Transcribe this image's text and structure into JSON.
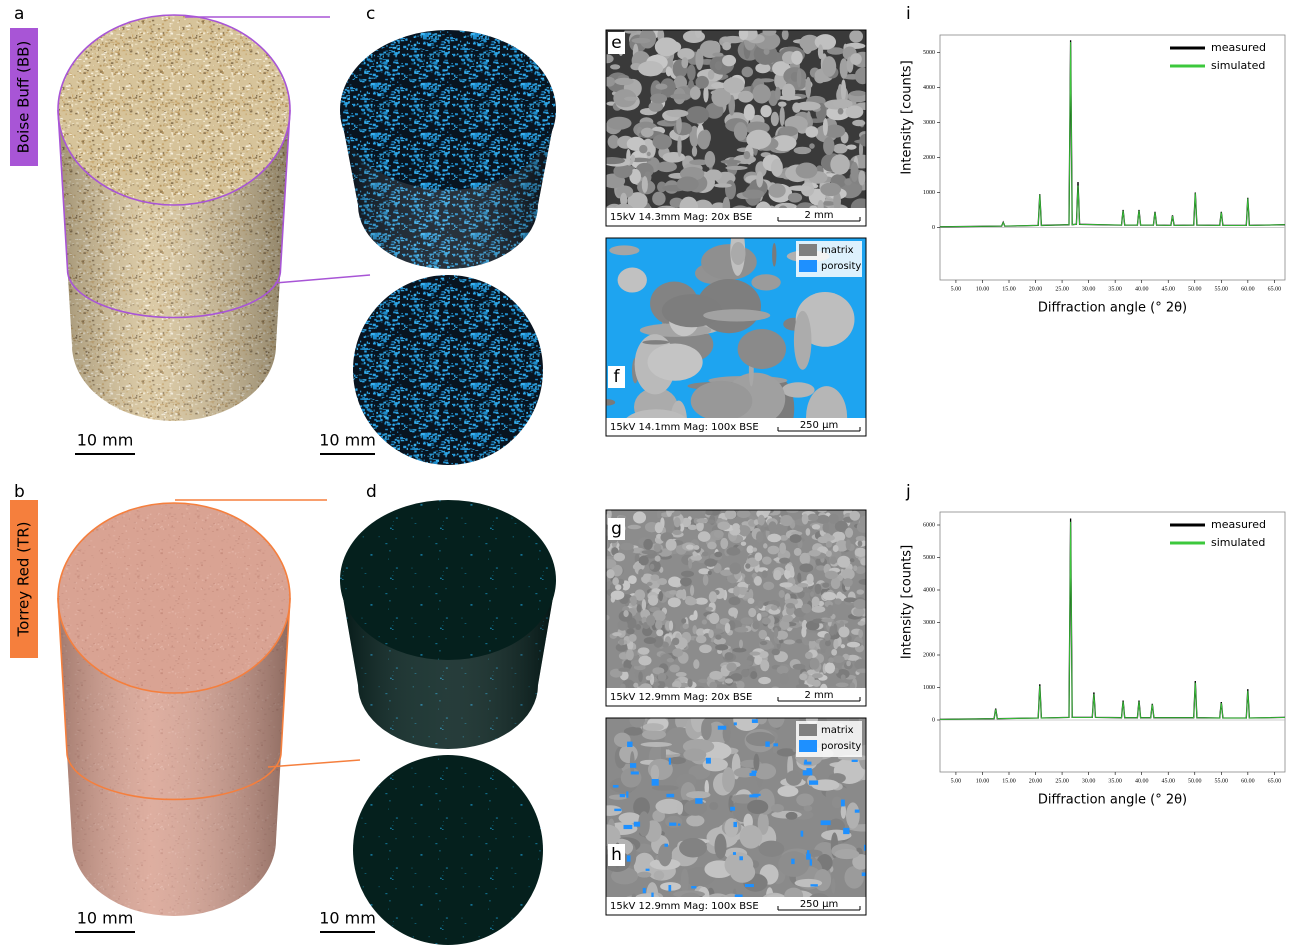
{
  "panel_labels": [
    "a",
    "b",
    "c",
    "d",
    "e",
    "f",
    "g",
    "h",
    "i",
    "j"
  ],
  "samples": [
    {
      "name": "Boise Buff (BB)",
      "color": "#a855d6"
    },
    {
      "name": "Torrey Red (TR)",
      "color": "#f57f3d"
    }
  ],
  "scale_bar_label": "10 mm",
  "sem_images": [
    {
      "info": "15kV  14.3mm  Mag: 20x  BSE",
      "scale": "2 mm"
    },
    {
      "info": "15kV  14.1mm  Mag: 100x  BSE",
      "scale": "250 µm"
    },
    {
      "info": "15kV  12.9mm  Mag: 20x  BSE",
      "scale": "2 mm"
    },
    {
      "info": "15kV  12.9mm  Mag: 100x  BSE",
      "scale": "250 µm"
    }
  ],
  "segmentation_legend": [
    {
      "name": "matrix",
      "color": "#7f7f7f"
    },
    {
      "name": "porosity",
      "color": "#1e90ff"
    }
  ],
  "chart_data": [
    {
      "type": "line",
      "y_label": "Intensity [counts]",
      "x_label": "Diffraction angle (° 2θ)",
      "xlim": [
        2,
        67
      ],
      "ylim": [
        -1500,
        5500
      ],
      "xticks": [
        {
          "value": 5,
          "label": "5.00"
        },
        {
          "value": 10,
          "label": "10.00"
        },
        {
          "value": 15,
          "label": "15.00"
        },
        {
          "value": 20,
          "label": "20.00"
        },
        {
          "value": 25,
          "label": "25.00"
        },
        {
          "value": 30,
          "label": "30.00"
        },
        {
          "value": 35,
          "label": "35.00"
        },
        {
          "value": 40,
          "label": "40.00"
        },
        {
          "value": 45,
          "label": "45.00"
        },
        {
          "value": 50,
          "label": "50.00"
        },
        {
          "value": 55,
          "label": "55.00"
        },
        {
          "value": 60,
          "label": "60.00"
        },
        {
          "value": 65,
          "label": "65.00"
        }
      ],
      "yticks": [
        0,
        1000,
        2000,
        3000,
        4000,
        5000
      ],
      "x": [
        2,
        13.6,
        13.9,
        14.2,
        20.5,
        20.8,
        21.1,
        26.3,
        26.6,
        26.9,
        27.7,
        28,
        28.3,
        36.2,
        36.5,
        36.8,
        39.2,
        39.5,
        39.8,
        42.2,
        42.5,
        42.8,
        45.5,
        45.8,
        46.1,
        49.8,
        50.1,
        50.4,
        54.7,
        55,
        55.3,
        59.7,
        60,
        60.3,
        67
      ],
      "series": [
        {
          "name": "measured",
          "color": "#000000",
          "values": [
            20,
            40,
            150,
            40,
            60,
            950,
            60,
            80,
            5350,
            80,
            90,
            1300,
            90,
            70,
            500,
            70,
            70,
            500,
            70,
            70,
            450,
            70,
            60,
            350,
            60,
            70,
            1000,
            70,
            60,
            450,
            60,
            60,
            850,
            60,
            80
          ]
        },
        {
          "name": "simulated",
          "color": "#3cc83c",
          "values": [
            20,
            40,
            140,
            40,
            60,
            930,
            60,
            80,
            5300,
            80,
            90,
            1200,
            90,
            70,
            480,
            70,
            70,
            480,
            70,
            70,
            430,
            70,
            60,
            330,
            60,
            70,
            980,
            70,
            60,
            430,
            60,
            60,
            830,
            60,
            80
          ]
        }
      ]
    },
    {
      "type": "line",
      "y_label": "Intensity [counts]",
      "x_label": "Diffraction angle (° 2θ)",
      "xlim": [
        2,
        67
      ],
      "ylim": [
        -1600,
        6400
      ],
      "xticks": [
        {
          "value": 5,
          "label": "5.00"
        },
        {
          "value": 10,
          "label": "10.00"
        },
        {
          "value": 15,
          "label": "15.00"
        },
        {
          "value": 20,
          "label": "20.00"
        },
        {
          "value": 25,
          "label": "25.00"
        },
        {
          "value": 30,
          "label": "30.00"
        },
        {
          "value": 35,
          "label": "35.00"
        },
        {
          "value": 40,
          "label": "40.00"
        },
        {
          "value": 45,
          "label": "45.00"
        },
        {
          "value": 50,
          "label": "50.00"
        },
        {
          "value": 55,
          "label": "55.00"
        },
        {
          "value": 60,
          "label": "60.00"
        },
        {
          "value": 65,
          "label": "65.00"
        }
      ],
      "yticks": [
        0,
        1000,
        2000,
        3000,
        4000,
        5000,
        6000
      ],
      "x": [
        2,
        12.2,
        12.5,
        12.8,
        20.5,
        20.8,
        21.1,
        26.3,
        26.6,
        26.9,
        30.7,
        31,
        31.3,
        36.2,
        36.5,
        36.8,
        39.2,
        39.5,
        39.8,
        41.7,
        42,
        42.3,
        49.8,
        50.1,
        50.4,
        54.7,
        55,
        55.3,
        59.7,
        60,
        60.3,
        67
      ],
      "series": [
        {
          "name": "measured",
          "color": "#000000",
          "values": [
            20,
            40,
            350,
            40,
            60,
            1100,
            60,
            80,
            6200,
            80,
            80,
            850,
            80,
            70,
            600,
            70,
            70,
            600,
            70,
            70,
            500,
            70,
            70,
            1200,
            70,
            60,
            550,
            60,
            60,
            950,
            60,
            80
          ]
        },
        {
          "name": "simulated",
          "color": "#3cc83c",
          "values": [
            20,
            40,
            330,
            40,
            60,
            1050,
            60,
            80,
            6100,
            80,
            80,
            800,
            80,
            70,
            570,
            70,
            70,
            570,
            70,
            70,
            480,
            70,
            70,
            1150,
            70,
            60,
            520,
            60,
            60,
            900,
            60,
            80
          ]
        }
      ]
    }
  ]
}
